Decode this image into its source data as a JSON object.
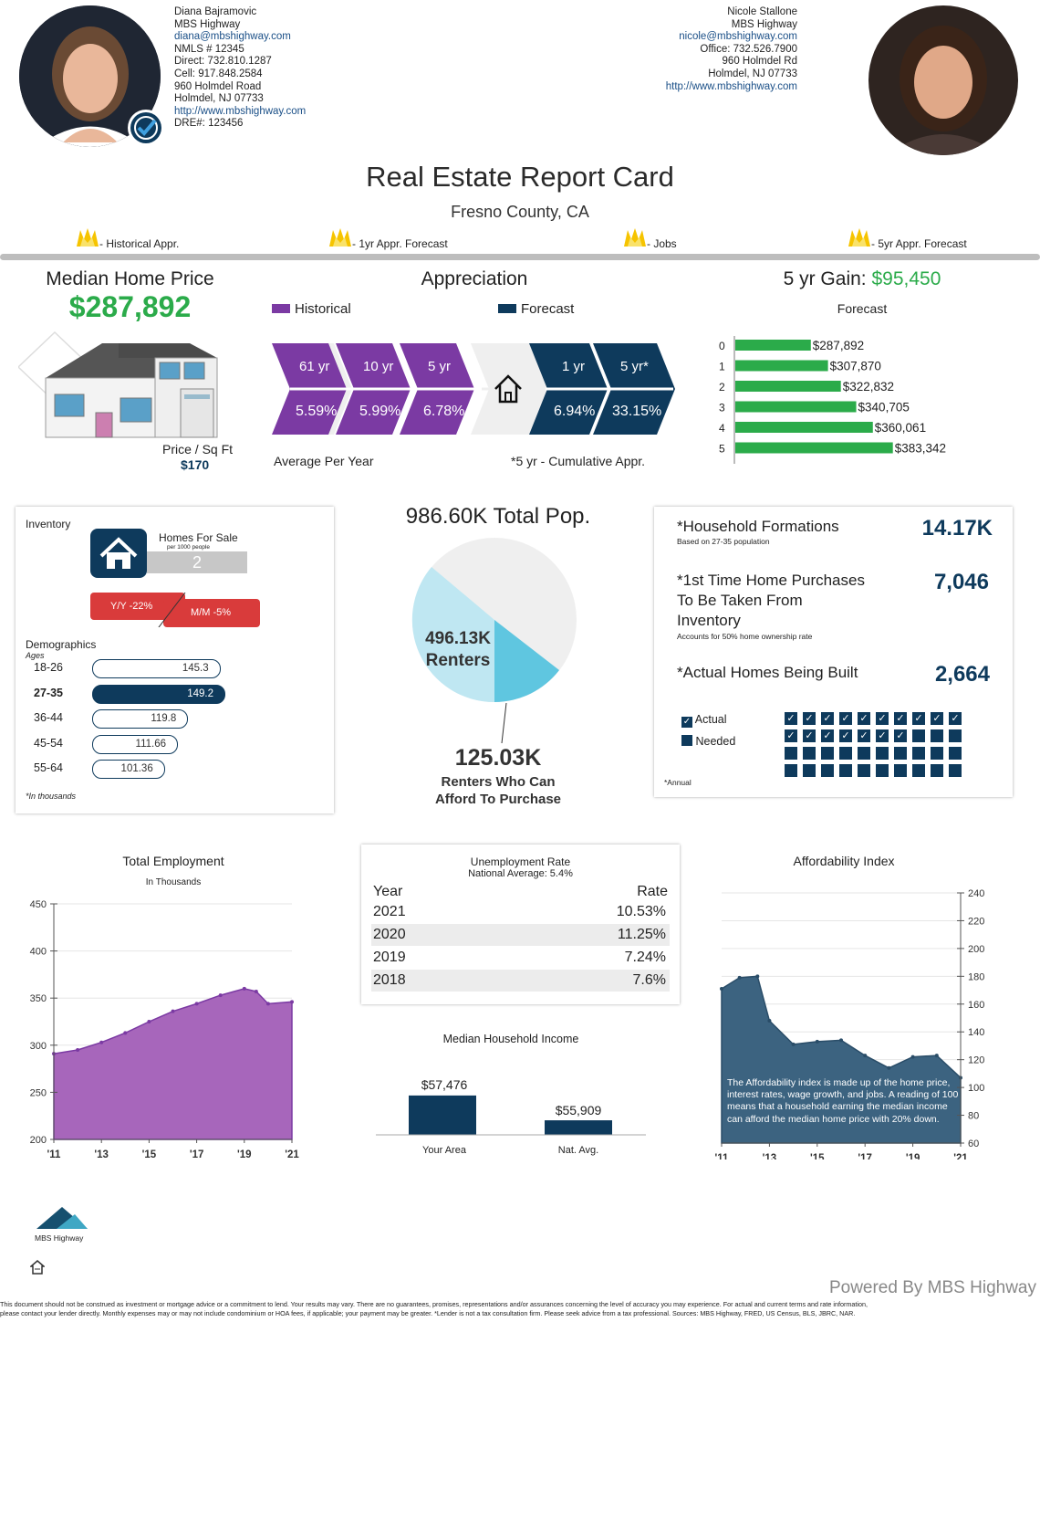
{
  "agent_left": {
    "name": "Diana Bajramovic",
    "company": "MBS Highway",
    "email": "diana@mbshighway.com",
    "nmls": "NMLS # 12345",
    "direct": "Direct: 732.810.1287",
    "cell": "Cell: 917.848.2584",
    "address1": "960 Holmdel Road",
    "address2": "Holmdel,  NJ  07733",
    "website": "http://www.mbshighway.com",
    "dre": "DRE#: 123456"
  },
  "agent_right": {
    "name": "Nicole Stallone",
    "company": "MBS Highway",
    "email": "nicole@mbshighway.com",
    "office": "Office: 732.526.7900",
    "address1": "960 Holmdel Rd",
    "address2": "Holmdel,  NJ  07733",
    "website": "http://www.mbshighway.com"
  },
  "title": "Real Estate Report Card",
  "subtitle": "Fresno County, CA",
  "legend": [
    {
      "label": "- Historical Appr."
    },
    {
      "label": "- 1yr Appr. Forecast"
    },
    {
      "label": "- Jobs"
    },
    {
      "label": "- 5yr Appr. Forecast"
    }
  ],
  "median_price": {
    "heading": "Median Home Price",
    "value": "$287,892",
    "sqft_label": "Price / Sq Ft",
    "sqft_value": "$170"
  },
  "appreciation": {
    "heading": "Appreciation",
    "historical_label": "Historical",
    "forecast_label": "Forecast",
    "historical": [
      {
        "period": "61 yr",
        "rate": "5.59%"
      },
      {
        "period": "10 yr",
        "rate": "5.99%"
      },
      {
        "period": "5 yr",
        "rate": "6.78%"
      }
    ],
    "forecast": [
      {
        "period": "1 yr",
        "rate": "6.94%"
      },
      {
        "period": "5 yr*",
        "rate": "33.15%"
      }
    ],
    "footer_left": "Average Per Year",
    "footer_right": "*5 yr - Cumulative Appr."
  },
  "gain": {
    "label": "5 yr Gain:",
    "value": "$95,450",
    "forecast_label": "Forecast",
    "bars": [
      {
        "year": "0",
        "value": 287892,
        "label": "$287,892"
      },
      {
        "year": "1",
        "value": 307870,
        "label": "$307,870"
      },
      {
        "year": "2",
        "value": 322832,
        "label": "$322,832"
      },
      {
        "year": "3",
        "value": 340705,
        "label": "$340,705"
      },
      {
        "year": "4",
        "value": 360061,
        "label": "$360,061"
      },
      {
        "year": "5",
        "value": 383342,
        "label": "$383,342"
      }
    ]
  },
  "inventory": {
    "heading": "Inventory",
    "homes_label": "Homes For Sale",
    "per_label": "per 1000 people",
    "homes_value": "2",
    "yy": "Y/Y  -22%",
    "mm": "M/M  -5%",
    "demographics_heading": "Demographics",
    "ages_label": "Ages",
    "footnote": "*In thousands",
    "ages": [
      {
        "range": "18-26",
        "value": "145.3",
        "num": 145.3
      },
      {
        "range": "27-35",
        "value": "149.2",
        "num": 149.2
      },
      {
        "range": "36-44",
        "value": "119.8",
        "num": 119.8
      },
      {
        "range": "45-54",
        "value": "111.66",
        "num": 111.66
      },
      {
        "range": "55-64",
        "value": "101.36",
        "num": 101.36
      }
    ]
  },
  "population": {
    "total": "986.60K Total Pop.",
    "renters": "496.13K",
    "renters_label": "Renters",
    "afford_value": "125.03K",
    "afford_label1": "Renters Who Can",
    "afford_label2": "Afford To Purchase"
  },
  "household": {
    "formations_label": "*Household Formations",
    "formations_sub": "Based on 27-35 population",
    "formations_value": "14.17K",
    "first_time_label1": "*1st Time Home Purchases",
    "first_time_label2": "To Be Taken From",
    "first_time_label3": "Inventory",
    "first_time_sub": "Accounts for 50% home ownership rate",
    "first_time_value": "7,046",
    "built_label": "*Actual Homes Being Built",
    "built_value": "2,664",
    "actual_label": "Actual",
    "needed_label": "Needed",
    "annual": "*Annual",
    "actual_count": 17,
    "total_count": 40
  },
  "employment": {
    "title": "Total Employment",
    "subtitle": "In Thousands",
    "yticks": [
      "450",
      "400",
      "350",
      "300",
      "250",
      "200"
    ],
    "xticks": [
      "'11",
      "'13",
      "'15",
      "'17",
      "'19",
      "'21"
    ]
  },
  "unemployment": {
    "title": "Unemployment Rate",
    "subtitle": "National Average: 5.4%",
    "col_year": "Year",
    "col_rate": "Rate",
    "rows": [
      {
        "year": "2021",
        "rate": "10.53%"
      },
      {
        "year": "2020",
        "rate": "11.25%"
      },
      {
        "year": "2019",
        "rate": "7.24%"
      },
      {
        "year": "2018",
        "rate": "7.6%"
      }
    ]
  },
  "income": {
    "title": "Median Household Income",
    "your_area": "$57,476",
    "nat_avg": "$55,909",
    "your_label": "Your Area",
    "nat_label": "Nat. Avg."
  },
  "affordability": {
    "title": "Affordability Index",
    "yticks": [
      "240",
      "220",
      "200",
      "180",
      "160",
      "140",
      "120",
      "100",
      "80",
      "60"
    ],
    "xticks": [
      "'11",
      "'13",
      "'15",
      "'17",
      "'19",
      "'21"
    ],
    "note": "The Affordability index is made up of the home price, interest rates, wage growth, and jobs. A reading of 100 means that a household earning the median income can afford the median home price with 20% down."
  },
  "footer": {
    "logo_text": "MBS Highway",
    "powered": "Powered By MBS Highway",
    "disclaimer1": "This document should not be construed as investment or mortgage advice or a commitment to lend. Your results may vary. There are no guarantees, promises, representations and/or assurances concerning the level of accuracy you may experience. For actual and current terms and rate information,",
    "disclaimer2": "please contact your lender directly. Monthly expenses may or may not include condominium or HOA fees, if applicable; your payment may be greater. *Lender is not a tax consultation firm. Please seek advice from a tax professional. Sources: MBS Highway, FRED, US Census, BLS, JBRC, NAR."
  },
  "chart_data": [
    {
      "type": "area",
      "title": "Total Employment",
      "ylabel": "In Thousands",
      "x": [
        2011,
        2012,
        2013,
        2014,
        2015,
        2016,
        2017,
        2018,
        2019,
        2019.5,
        2020,
        2021
      ],
      "values": [
        291,
        295,
        303,
        313,
        325,
        336,
        344,
        353,
        360,
        357,
        344,
        346
      ],
      "ylim": [
        200,
        450
      ],
      "xticks": [
        "'11",
        "'13",
        "'15",
        "'17",
        "'19",
        "'21"
      ]
    },
    {
      "type": "area",
      "title": "Affordability Index",
      "x": [
        2011,
        2011.75,
        2012.5,
        2013,
        2014,
        2015,
        2016,
        2017,
        2018,
        2019,
        2020,
        2021
      ],
      "values": [
        171,
        179,
        180,
        148,
        131,
        133,
        134,
        123,
        114,
        122,
        123,
        107
      ],
      "ylim": [
        60,
        240
      ],
      "xticks": [
        "'11",
        "'13",
        "'15",
        "'17",
        "'19",
        "'21"
      ]
    },
    {
      "type": "bar",
      "title": "Median Household Income",
      "categories": [
        "Your Area",
        "Nat. Avg."
      ],
      "values": [
        57476,
        55909
      ]
    },
    {
      "type": "pie",
      "title": "Total Population",
      "categories": [
        "Renters",
        "Other",
        "Renters Who Can Afford To Purchase"
      ],
      "values": [
        496.13,
        490.47,
        125.03
      ]
    }
  ]
}
